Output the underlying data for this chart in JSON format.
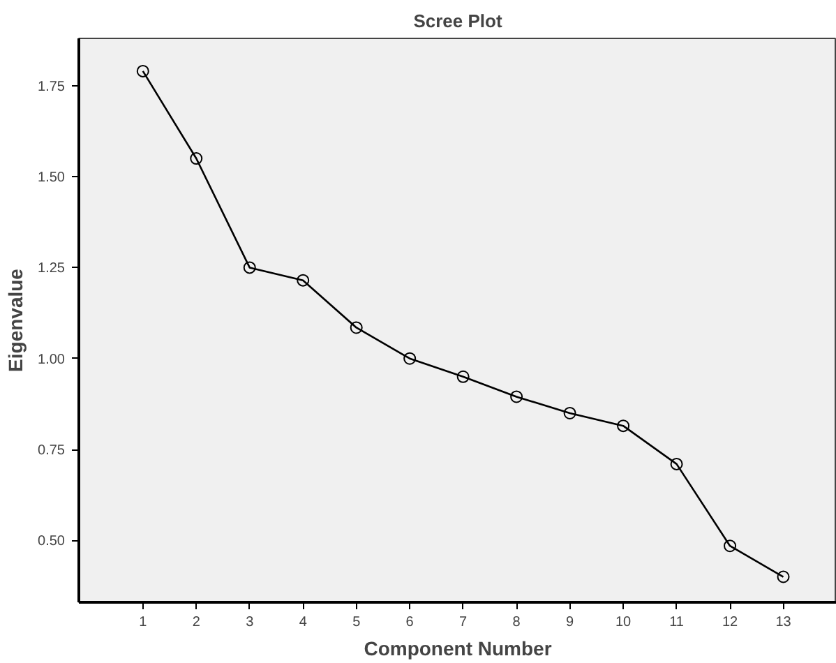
{
  "chart_data": {
    "type": "line",
    "title": "Scree Plot",
    "xlabel": "Component Number",
    "ylabel": "Eigenvalue",
    "x": [
      1,
      2,
      3,
      4,
      5,
      6,
      7,
      8,
      9,
      10,
      11,
      12,
      13
    ],
    "series": [
      {
        "color": "#000000",
        "values": [
          1.79,
          1.55,
          1.25,
          1.215,
          1.085,
          1.0,
          0.95,
          0.895,
          0.85,
          0.815,
          0.71,
          0.485,
          0.4
        ]
      }
    ],
    "xlim": [
      -0.2,
      14
    ],
    "xticks": [
      1,
      2,
      3,
      4,
      5,
      6,
      7,
      8,
      9,
      10,
      11,
      12,
      13
    ],
    "ylim": [
      0.33,
      1.88
    ],
    "yticks": [
      {
        "value": 0.5,
        "label": "0.50"
      },
      {
        "value": 0.75,
        "label": "0.75"
      },
      {
        "value": 1.0,
        "label": "1.00"
      },
      {
        "value": 1.25,
        "label": "1.25"
      },
      {
        "value": 1.5,
        "label": "1.50"
      },
      {
        "value": 1.75,
        "label": "1.75"
      }
    ],
    "grid": false,
    "marker": "circle",
    "line_style": "solid"
  }
}
